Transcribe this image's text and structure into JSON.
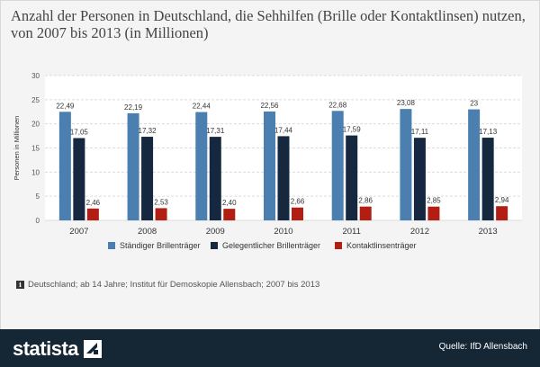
{
  "title": "Anzahl der Personen in Deutschland, die Sehhilfen (Brille oder Kontaktlinsen) nutzen, von 2007 bis 2013 (in Millionen)",
  "note": "Deutschland; ab 14 Jahre; Institut für Demoskopie Allensbach; 2007 bis 2013",
  "note_icon": "info-icon",
  "footer": {
    "brand": "statista",
    "source": "Quelle: IfD Allensbach"
  },
  "colors": {
    "series1": "#4a7faf",
    "series2": "#152840",
    "series3": "#b21e14",
    "footer": "#152635"
  },
  "chart_data": {
    "type": "bar",
    "title": "Anzahl der Personen in Deutschland, die Sehhilfen (Brille oder Kontaktlinsen) nutzen, von 2007 bis 2013 (in Millionen)",
    "xlabel": "",
    "ylabel": "Personen in Millionen",
    "ylim": [
      0,
      30
    ],
    "yticks": [
      0,
      5,
      10,
      15,
      20,
      25,
      30
    ],
    "grid": true,
    "legend_position": "bottom",
    "categories": [
      "2007",
      "2008",
      "2009",
      "2010",
      "2011",
      "2012",
      "2013"
    ],
    "series": [
      {
        "name": "Ständiger Brillenträger",
        "color": "#4a7faf",
        "values": [
          22.49,
          22.19,
          22.44,
          22.56,
          22.68,
          23.08,
          23
        ],
        "labels": [
          "22,49",
          "22,19",
          "22,44",
          "22,56",
          "22,68",
          "23,08",
          "23"
        ]
      },
      {
        "name": "Gelegentlicher Brillenträger",
        "color": "#152840",
        "values": [
          17.05,
          17.32,
          17.31,
          17.44,
          17.59,
          17.11,
          17.13
        ],
        "labels": [
          "17,05",
          "17,32",
          "17,31",
          "17,44",
          "17,59",
          "17,11",
          "17,13"
        ]
      },
      {
        "name": "Kontaktlinsenträger",
        "color": "#b21e14",
        "values": [
          2.46,
          2.53,
          2.4,
          2.66,
          2.86,
          2.85,
          2.94
        ],
        "labels": [
          "2,46",
          "2,53",
          "2,40",
          "2,66",
          "2,86",
          "2,85",
          "2,94"
        ]
      }
    ]
  }
}
